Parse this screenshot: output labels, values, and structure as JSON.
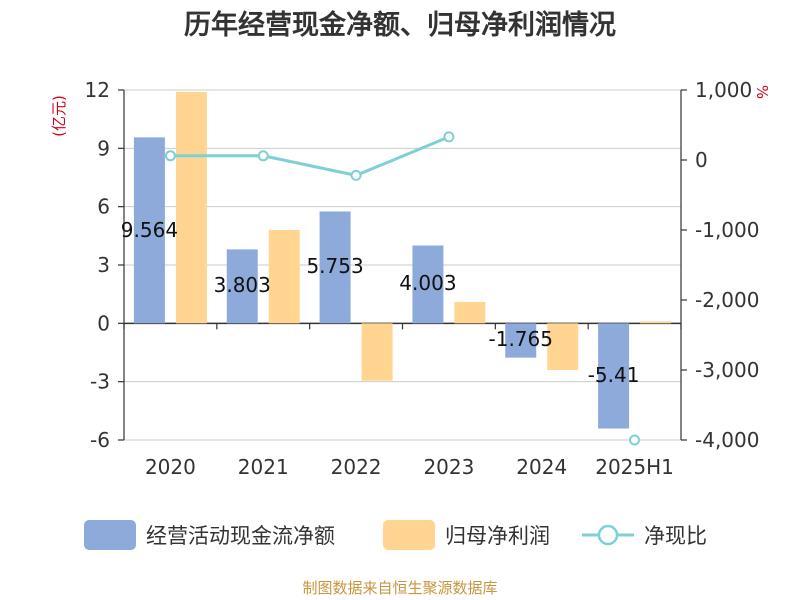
{
  "chart_data": {
    "type": "bar",
    "title": "历年经营现金净额、归母净利润情况",
    "categories": [
      "2020",
      "2021",
      "2022",
      "2023",
      "2024",
      "2025H1"
    ],
    "left_axis": {
      "unit": "(亿元)",
      "ylim": [
        -6,
        12
      ],
      "ticks": [
        12,
        9,
        6,
        3,
        0,
        -3,
        -6
      ],
      "tick_labels": [
        "12",
        "9",
        "6",
        "3",
        "0",
        "-3",
        "-6"
      ]
    },
    "right_axis": {
      "unit": "%",
      "ylim": [
        -4000,
        1000
      ],
      "ticks": [
        1000,
        0,
        -1000,
        -2000,
        -3000,
        -4000
      ],
      "tick_labels": [
        "1,000",
        "0",
        "-1,000",
        "-2,000",
        "-3,000",
        "-4,000"
      ]
    },
    "series": [
      {
        "name": "经营活动现金流净额",
        "kind": "bar",
        "axis": "left",
        "color": "#8eaadb",
        "values": [
          9.564,
          3.803,
          5.753,
          4.003,
          -1.765,
          -5.41
        ],
        "labels": [
          "9.564",
          "3.803",
          "5.753",
          "4.003",
          "-1.765",
          "-5.41"
        ]
      },
      {
        "name": "归母净利润",
        "kind": "bar",
        "axis": "left",
        "color": "#ffd591",
        "values": [
          11.9,
          4.8,
          -2.95,
          1.1,
          -2.4,
          0.1
        ]
      },
      {
        "name": "净现比",
        "kind": "line",
        "axis": "right",
        "color": "#7fd0d4",
        "values": [
          60,
          60,
          -220,
          330,
          null,
          -4000
        ]
      }
    ],
    "grid": true,
    "legend": "bottom",
    "source": "制图数据来自恒生聚源数据库"
  }
}
